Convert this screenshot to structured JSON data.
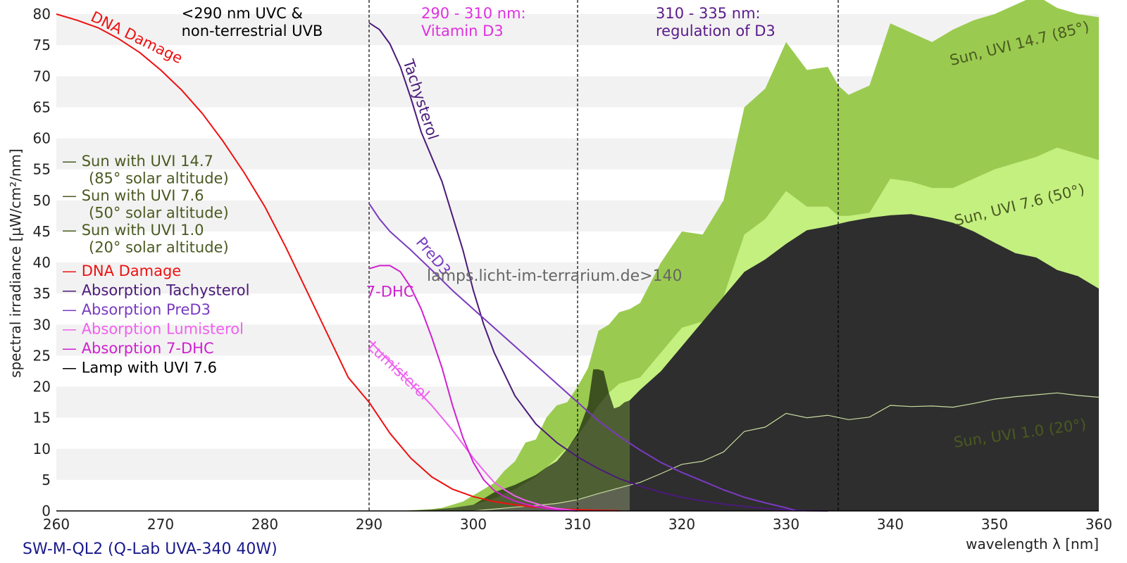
{
  "chart_data": {
    "type": "area",
    "title": "",
    "xlabel": "wavelength λ [nm]",
    "ylabel": "spectral irradiance [µW/cm²/nm]",
    "xlim": [
      260,
      360
    ],
    "ylim": [
      0,
      80
    ],
    "xticks": [
      260,
      270,
      280,
      290,
      300,
      310,
      320,
      330,
      340,
      350,
      360
    ],
    "yticks": [
      0,
      5,
      10,
      15,
      20,
      25,
      30,
      35,
      40,
      45,
      50,
      55,
      60,
      65,
      70,
      75,
      80
    ],
    "grid": "horizontal bands",
    "footer": "SW-M-QL2 (Q-Lab UVA-340 40W)",
    "watermark": "lamps.licht-im-terrarium.de>140",
    "range_headers": [
      {
        "x": 272,
        "y": 80,
        "lines": [
          "<290 nm UVC &",
          "non-terrestrial UVB"
        ],
        "color": "#000000"
      },
      {
        "x": 295,
        "y": 80,
        "lines": [
          "290 - 310 nm:",
          "Vitamin D3"
        ],
        "color": "#e030e0"
      },
      {
        "x": 317.5,
        "y": 80,
        "lines": [
          "310 - 335 nm:",
          "regulation of D3"
        ],
        "color": "#5a1a8a"
      }
    ],
    "vlines": [
      290,
      310,
      335
    ],
    "legend": {
      "placement": "left",
      "entries": [
        {
          "symbol": "—",
          "lines": [
            "Sun with UVI 14.7",
            "(85° solar altitude)"
          ],
          "color": "#4a5a20"
        },
        {
          "symbol": "—",
          "lines": [
            "Sun with UVI 7.6",
            "(50° solar altitude)"
          ],
          "color": "#4a5a20"
        },
        {
          "symbol": "—",
          "lines": [
            "Sun with UVI 1.0",
            "(20° solar altitude)"
          ],
          "color": "#4a5a20"
        },
        {
          "symbol": "—",
          "lines": [
            "DNA Damage"
          ],
          "color": "#ee1111"
        },
        {
          "symbol": "—",
          "lines": [
            "Absorption Tachysterol"
          ],
          "color": "#4b1a7a"
        },
        {
          "symbol": "—",
          "lines": [
            "Absorption PreD3"
          ],
          "color": "#7a3ac0"
        },
        {
          "symbol": "—",
          "lines": [
            "Absorption Lumisterol"
          ],
          "color": "#f060f0"
        },
        {
          "symbol": "—",
          "lines": [
            "Absorption 7-DHC"
          ],
          "color": "#d020d0"
        },
        {
          "symbol": "—",
          "lines": [
            "Lamp with UVI 7.6"
          ],
          "color": "#000000"
        }
      ]
    },
    "areas": [
      {
        "name": "Sun with UVI 14.7",
        "color": "#9acb50",
        "x": [
          293,
          296,
          297,
          298,
          299,
          300,
          301,
          302,
          303,
          304,
          305,
          306,
          307,
          308,
          309,
          310,
          311,
          312,
          313,
          314,
          315,
          316,
          318,
          320,
          322,
          324,
          326,
          328,
          330,
          332,
          334,
          335,
          336,
          338,
          340,
          342,
          344,
          346,
          348,
          350,
          352,
          354,
          356,
          358,
          360
        ],
        "y": [
          0,
          0.3,
          0.5,
          1,
          1.5,
          2.5,
          3.5,
          4.5,
          6.5,
          8,
          11,
          11.5,
          15,
          17,
          17.5,
          20,
          23,
          29,
          30,
          32,
          32.5,
          33.5,
          40,
          45,
          44.5,
          50,
          65,
          68,
          75.5,
          71,
          71.5,
          68.5,
          67,
          68.5,
          78.5,
          77,
          75.5,
          77.5,
          79,
          80,
          81.5,
          83,
          81,
          80,
          79.5
        ]
      },
      {
        "name": "Sun with UVI 7.6",
        "color": "#c4f080",
        "x": [
          293,
          296,
          298,
          300,
          302,
          304,
          306,
          308,
          310,
          312,
          313,
          314,
          315,
          316,
          318,
          320,
          322,
          324,
          326,
          328,
          330,
          332,
          334,
          335,
          336,
          338,
          340,
          342,
          344,
          346,
          348,
          350,
          352,
          354,
          356,
          358,
          360
        ],
        "y": [
          0,
          0.2,
          0.5,
          1,
          2,
          3.5,
          5.5,
          8.5,
          12,
          17,
          19,
          20.5,
          21,
          21.5,
          25.5,
          29.5,
          30.5,
          34.5,
          44.5,
          47,
          51.5,
          49,
          49,
          47.5,
          47.5,
          48,
          53.5,
          53,
          52,
          52,
          53.5,
          55,
          56,
          57,
          58.5,
          57.5,
          56.5
        ]
      },
      {
        "name": "Sun with UVI 1.0",
        "color": "#e8f8c8",
        "x": [
          300,
          302,
          304,
          306,
          308,
          310,
          312,
          314,
          316,
          318,
          320,
          322,
          324,
          326,
          328,
          330,
          332,
          334,
          336,
          338,
          340,
          342,
          344,
          346,
          348,
          350,
          352,
          354,
          356,
          358,
          360
        ],
        "y": [
          0,
          0.3,
          0.6,
          0.9,
          1.2,
          1.8,
          2.8,
          3.7,
          4.6,
          6,
          7.5,
          8,
          9.5,
          12.8,
          13.5,
          15.7,
          15,
          15.4,
          14.7,
          15.1,
          17,
          16.8,
          16.9,
          16.7,
          17.3,
          18,
          18.4,
          18.7,
          19,
          18.6,
          18.3
        ]
      },
      {
        "name": "Lamp with UVI 7.6",
        "color": "#000000",
        "opacity": 0.6,
        "x": [
          293,
          296,
          298,
          300,
          301,
          302,
          303,
          304,
          305,
          306,
          307,
          308,
          309,
          310,
          311,
          311.5,
          312,
          312.5,
          313,
          313.5,
          314,
          314.5,
          315
        ],
        "y": [
          0,
          0.2,
          0.5,
          1,
          2,
          3,
          3.6,
          4.2,
          5,
          5.8,
          7,
          8,
          10,
          12.5,
          17,
          22.8,
          22.8,
          22.5,
          19,
          16.5,
          16.8,
          17.5,
          17.8
        ]
      },
      {
        "name": "Lamp with UVI 7.6",
        "color": "#2e2e2e",
        "x": [
          315,
          316,
          318,
          320,
          322,
          324,
          326,
          328,
          330,
          332,
          334,
          336,
          338,
          340,
          342,
          344,
          346,
          348,
          350,
          352,
          354,
          356,
          358,
          360
        ],
        "y": [
          17.8,
          19.5,
          22.5,
          26.5,
          30.5,
          34.5,
          38.5,
          40.5,
          43,
          45.2,
          45.8,
          46.6,
          47.2,
          47.6,
          47.8,
          47.2,
          46.4,
          45,
          43.2,
          41.5,
          40.8,
          38.8,
          37.8,
          35.8
        ]
      }
    ],
    "series": [
      {
        "name": "DNA Damage",
        "color": "#ee1111",
        "x": [
          260,
          262,
          264,
          266,
          268,
          270,
          272,
          274,
          276,
          278,
          280,
          282,
          284,
          286,
          288,
          290,
          292,
          294,
          296,
          298,
          300,
          302,
          304,
          306,
          308,
          310,
          312,
          314
        ],
        "y": [
          80,
          79,
          77.8,
          76,
          73.8,
          71,
          67.8,
          64,
          59.5,
          54.5,
          49,
          42.5,
          35.5,
          28.5,
          21.5,
          17.5,
          12.5,
          8.5,
          5.5,
          3.5,
          2.3,
          1.5,
          1,
          0.6,
          0.35,
          0.2,
          0.1,
          0.05
        ]
      },
      {
        "name": "Absorption Tachysterol",
        "color": "#4b1a7a",
        "x": [
          290,
          291,
          292,
          293,
          294,
          295,
          296,
          297,
          298,
          299,
          300,
          301,
          302,
          303,
          304,
          306,
          308,
          310,
          312,
          314,
          316,
          318,
          320,
          322,
          324,
          326,
          328,
          330,
          332,
          334
        ],
        "y": [
          78.6,
          77.5,
          75.2,
          71.5,
          66.5,
          61,
          57,
          53,
          47.5,
          42,
          35.5,
          30,
          25.5,
          22,
          18.5,
          14,
          11,
          8.7,
          6.8,
          5.2,
          4,
          3,
          2.2,
          1.6,
          1.1,
          0.7,
          0.4,
          0.2,
          0.05,
          0
        ]
      },
      {
        "name": "Absorption PreD3",
        "color": "#7a3ac0",
        "x": [
          290,
          291,
          292,
          293,
          294,
          296,
          298,
          300,
          302,
          304,
          306,
          308,
          310,
          312,
          314,
          316,
          318,
          320,
          322,
          324,
          326,
          328,
          330,
          331
        ],
        "y": [
          49.5,
          47,
          45,
          43.5,
          42,
          38.8,
          35.5,
          32.5,
          29.5,
          26.5,
          23.5,
          20.5,
          17.5,
          14.5,
          12,
          9.8,
          7.8,
          6.2,
          4.8,
          3.4,
          2.2,
          1.3,
          0.5,
          0
        ]
      },
      {
        "name": "Absorption Lumisterol",
        "color": "#f060f0",
        "x": [
          290,
          292,
          294,
          296,
          298,
          300,
          301,
          302,
          303,
          304,
          305,
          306,
          307,
          308,
          309,
          310
        ],
        "y": [
          27.5,
          24,
          20.5,
          17,
          13,
          8.5,
          6.5,
          4.6,
          3.4,
          2.4,
          1.7,
          1.2,
          0.7,
          0.4,
          0.2,
          0
        ]
      },
      {
        "name": "Absorption 7-DHC",
        "color": "#d020d0",
        "x": [
          290,
          291,
          292,
          293,
          294,
          295,
          296,
          297,
          298,
          299,
          300,
          301,
          302,
          303,
          304,
          305,
          306,
          307,
          308,
          309,
          310
        ],
        "y": [
          39,
          39.5,
          39.5,
          38.5,
          36,
          32.5,
          28,
          23,
          17,
          11.8,
          7.8,
          5,
          3.3,
          2.3,
          1.6,
          1.1,
          0.7,
          0.4,
          0.2,
          0.1,
          0
        ]
      }
    ],
    "curve_labels": [
      {
        "text": "DNA Damage",
        "x": 267.5,
        "y": 75.5,
        "angle": 26,
        "color": "#ee1111"
      },
      {
        "text": "Tachysterol",
        "x": 294.5,
        "y": 66,
        "angle": 72,
        "color": "#4b1a7a"
      },
      {
        "text": "PreD3",
        "x": 295.8,
        "y": 40.5,
        "angle": 50,
        "color": "#7a3ac0"
      },
      {
        "text": "7-DHC",
        "x": 292,
        "y": 34.5,
        "angle": 0,
        "color": "#d020d0"
      },
      {
        "text": "Lumisterol",
        "x": 292.5,
        "y": 22,
        "angle": 43,
        "color": "#f060f0"
      },
      {
        "text": "Sun, UVI 14.7 (85°)",
        "x": 352.5,
        "y": 74.5,
        "angle": -14,
        "color": "#4a5a20"
      },
      {
        "text": "Sun, UVI 7.6 (50°)",
        "x": 352.5,
        "y": 48.5,
        "angle": -14,
        "color": "#4a5a20"
      },
      {
        "text": "Sun, UVI 1.0 (20°)",
        "x": 352.5,
        "y": 11.7,
        "angle": -8,
        "color": "#4a5a20"
      }
    ]
  }
}
